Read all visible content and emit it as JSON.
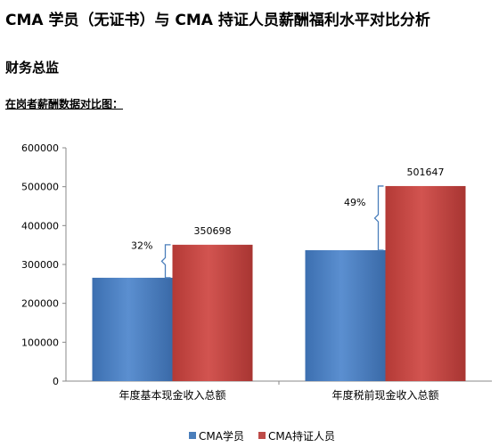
{
  "page": {
    "title": "CMA 学员（无证书）与 CMA 持证人员薪酬福利水平对比分析",
    "section": "财务总监",
    "subtitle": "在岗者薪酬数据对比图："
  },
  "chart_data": {
    "type": "bar",
    "categories": [
      "年度基本现金收入总额",
      "年度税前现金收入总额"
    ],
    "series": [
      {
        "name": "CMA学员",
        "values": [
          265800,
          336700
        ],
        "color": "#4a7ebb"
      },
      {
        "name": "CMA持证人员",
        "values": [
          350698,
          501647
        ],
        "color": "#be4b48"
      }
    ],
    "data_labels": [
      "350698",
      "501647"
    ],
    "difference_labels": [
      "32%",
      "49%"
    ],
    "ylim": [
      0,
      600000
    ],
    "yticks": [
      0,
      100000,
      200000,
      300000,
      400000,
      500000,
      600000
    ],
    "ytick_labels": [
      "0",
      "100000",
      "200000",
      "300000",
      "400000",
      "500000",
      "600000"
    ],
    "grid": false,
    "legend": "bottom"
  }
}
